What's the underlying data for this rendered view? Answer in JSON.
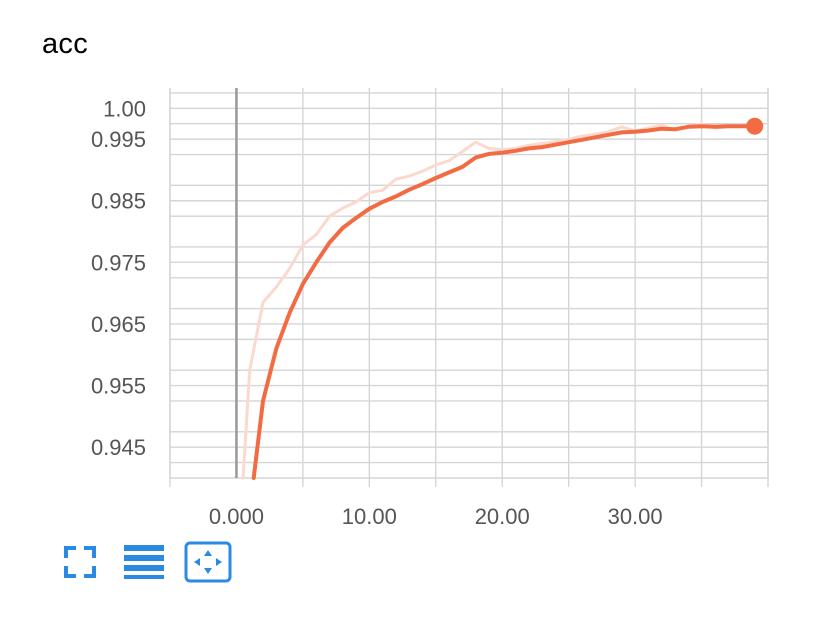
{
  "title": "acc",
  "colors": {
    "smoothed": "#f26b43",
    "raw": "#fbd9cf",
    "grid": "#d5d5d5",
    "zero_line": "#999999",
    "toolbar": "#2a8ae3"
  },
  "toolbar": {
    "icons": [
      "expand-icon",
      "data-table-icon",
      "fit-domain-icon"
    ]
  },
  "chart_data": {
    "type": "line",
    "title": "acc",
    "xlabel": "",
    "ylabel": "",
    "xlim": [
      -5,
      40
    ],
    "ylim": [
      0.94,
      1.0033
    ],
    "x_ticks": [
      0,
      10,
      20,
      30
    ],
    "x_tick_labels": [
      "0.000",
      "10.00",
      "20.00",
      "30.00"
    ],
    "y_ticks": [
      1.0,
      0.995,
      0.985,
      0.975,
      0.965,
      0.955,
      0.945
    ],
    "y_tick_labels": [
      "1.00",
      "0.995",
      "0.985",
      "0.975",
      "0.965",
      "0.955",
      "0.945"
    ],
    "grid": true,
    "series": [
      {
        "role": "raw",
        "x": [
          0.5,
          1,
          2,
          3,
          4,
          5,
          6,
          7,
          8,
          9,
          10,
          11,
          12,
          13,
          14,
          15,
          16,
          17,
          18,
          19,
          20,
          21,
          22,
          23,
          24,
          25,
          26,
          27,
          28,
          29,
          30,
          31,
          32,
          33,
          34,
          35,
          36,
          37,
          38,
          39
        ],
        "y": [
          0.94,
          0.9575,
          0.9685,
          0.971,
          0.974,
          0.9778,
          0.9795,
          0.9825,
          0.9838,
          0.9848,
          0.9863,
          0.9867,
          0.9885,
          0.989,
          0.9898,
          0.9908,
          0.9915,
          0.993,
          0.9945,
          0.9935,
          0.9933,
          0.9935,
          0.994,
          0.9943,
          0.9946,
          0.995,
          0.9955,
          0.9958,
          0.9962,
          0.997,
          0.9963,
          0.9968,
          0.9972,
          0.9965,
          0.997,
          0.9975,
          0.9968,
          0.997,
          0.9972,
          0.9973
        ]
      },
      {
        "role": "smoothed",
        "x": [
          1.3,
          2,
          3,
          4,
          5,
          6,
          7,
          8,
          9,
          10,
          11,
          12,
          13,
          14,
          15,
          16,
          17,
          18,
          19,
          20,
          21,
          22,
          23,
          24,
          25,
          26,
          27,
          28,
          29,
          30,
          31,
          32,
          33,
          34,
          35,
          36,
          37,
          38,
          39
        ],
        "y": [
          0.94,
          0.9525,
          0.961,
          0.9668,
          0.9715,
          0.975,
          0.9782,
          0.9806,
          0.9822,
          0.9837,
          0.9848,
          0.9857,
          0.9868,
          0.9877,
          0.9887,
          0.9896,
          0.9905,
          0.992,
          0.9926,
          0.9928,
          0.9931,
          0.9935,
          0.9937,
          0.9941,
          0.9945,
          0.9949,
          0.9953,
          0.9957,
          0.9961,
          0.9962,
          0.9964,
          0.9967,
          0.9966,
          0.997,
          0.9971,
          0.997,
          0.9971,
          0.9971,
          0.9971
        ]
      }
    ],
    "end_marker": {
      "x": 39,
      "y": 0.9971
    }
  }
}
